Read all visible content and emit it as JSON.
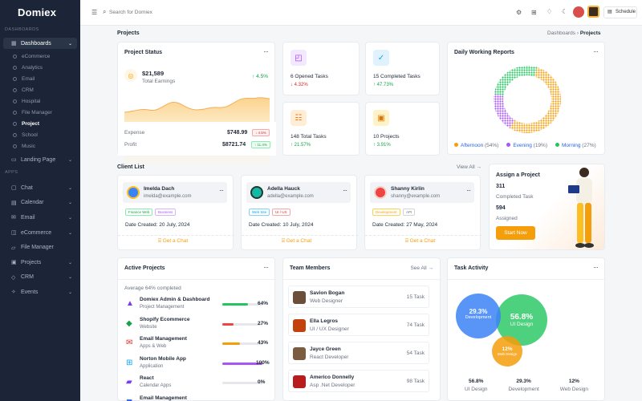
{
  "brand": {
    "name": "Domiex"
  },
  "sidebar": {
    "dash_section": "DASHBOARDS",
    "dashboards": "Dashboards",
    "subs": [
      "eCommerce",
      "Analytics",
      "Email",
      "CRM",
      "Hospital",
      "File Manager",
      "Project",
      "School",
      "Music"
    ],
    "landing": "Landing Page",
    "apps_section": "APPS",
    "apps": [
      "Chat",
      "Calendar",
      "Email",
      "eCommerce",
      "File Manager",
      "Projects",
      "CRM",
      "Events"
    ]
  },
  "topbar": {
    "search_placeholder": "Search for Domiex",
    "schedule": "Schedule"
  },
  "page": {
    "title": "Projects",
    "crumb1": "Dashboards",
    "crumb2": "Projects"
  },
  "project_status": {
    "title": "Project Status",
    "earn": "$21,589",
    "earn_label": "Total Earnings",
    "change": "↑ 4.5%",
    "expense_label": "Expense",
    "expense": "$748.99",
    "expense_change": "↓ 4.5%",
    "profit_label": "Profit",
    "profit": "$8721.74",
    "profit_change": "↑ 11.4%"
  },
  "stats": [
    {
      "value": "6 Opened Tasks",
      "change": "↓ 4.32%"
    },
    {
      "value": "15 Completed Tasks",
      "change": "↑ 47.73%"
    },
    {
      "value": "148 Total Tasks",
      "change": "↑ 21.57%"
    },
    {
      "value": "10 Projects",
      "change": "↑ 3.91%"
    }
  ],
  "working": {
    "title": "Daily Working Reports",
    "legend": [
      "Afternoon",
      "Evening",
      "Morning"
    ],
    "pct": [
      "(54%)",
      "(19%)",
      "(27%)"
    ]
  },
  "clients": {
    "title": "Client List",
    "view_all": "View All",
    "items": [
      {
        "name": "Imelda Dach",
        "email": "imelda@example.com",
        "tags": [
          "Finance Web",
          "Business"
        ],
        "date": "Date Created: 20 July, 2024",
        "cta": "Get a Chat"
      },
      {
        "name": "Adella Hauck",
        "email": "adella@example.com",
        "tags": [
          "Web Site",
          "UI / UX"
        ],
        "date": "Date Created: 10 July, 2024",
        "cta": "Get a Chat"
      },
      {
        "name": "Shanny Kirlin",
        "email": "shanny@example.com",
        "tags": [
          "Development",
          "API"
        ],
        "date": "Date Created: 27 May, 2024",
        "cta": "Get a Chat"
      }
    ]
  },
  "assign": {
    "title": "Assign a Project",
    "n1": "311",
    "l1": "Completed Task",
    "n2": "594",
    "l2": "Assigned",
    "btn": "Start Now"
  },
  "active": {
    "title": "Active Projects",
    "avg": "Average 64% completed",
    "items": [
      {
        "name": "Domiex Admin & Dashboard",
        "sub": "Project Management",
        "pct": "64%",
        "fill": 0.64,
        "color": "#22c55e"
      },
      {
        "name": "Shopify Ecommerce",
        "sub": "Website",
        "pct": "27%",
        "fill": 0.27,
        "color": "#ef4444"
      },
      {
        "name": "Email Management",
        "sub": "Apps & Web",
        "pct": "43%",
        "fill": 0.43,
        "color": "#f59e0b"
      },
      {
        "name": "Norton Mobile App",
        "sub": "Application",
        "pct": "100%",
        "fill": 1,
        "color": "#a855f7"
      },
      {
        "name": "React",
        "sub": "Calendar Apps",
        "pct": "0%",
        "fill": 0,
        "color": "#3b82f6"
      },
      {
        "name": "Email Management",
        "sub": "",
        "pct": "",
        "fill": 0,
        "color": "#3b82f6"
      }
    ]
  },
  "team": {
    "title": "Team Members",
    "see_all": "See All",
    "items": [
      {
        "name": "Savion Bogan",
        "role": "Web Designer",
        "task": "15 Task"
      },
      {
        "name": "Ella Legros",
        "role": "UI / UX Designer",
        "task": "74 Task"
      },
      {
        "name": "Jayce Green",
        "role": "React Developer",
        "task": "54 Task"
      },
      {
        "name": "Americo Donnelly",
        "role": "Asp .Net Developer",
        "task": "98 Task"
      }
    ]
  },
  "activity": {
    "title": "Task Activity",
    "bubbles": [
      {
        "pct": "29.3%",
        "label": "Development"
      },
      {
        "pct": "56.8%",
        "label": "UI Design"
      },
      {
        "pct": "12%",
        "label": "Web Design"
      }
    ],
    "stats": [
      {
        "pct": "56.8%",
        "label": "UI Design"
      },
      {
        "pct": "29.3%",
        "label": "Development"
      },
      {
        "pct": "12%",
        "label": "Web Design"
      }
    ]
  },
  "colors": {
    "sidebar": "#1b2537",
    "accent": "#f59e0b",
    "afternoon": "#f59e0b",
    "evening": "#a855f7",
    "morning": "#22c55e"
  }
}
